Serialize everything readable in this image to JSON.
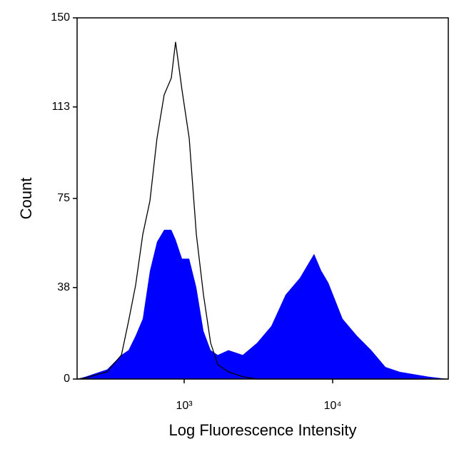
{
  "chart_data": {
    "type": "area",
    "x_label": "Log Fluorescence Intensity",
    "y_label": "Count",
    "x": [
      190,
      217,
      303,
      378,
      422,
      471,
      526,
      588,
      656,
      733,
      819,
      875,
      967,
      1081,
      1208,
      1349,
      1507,
      1683,
      1987,
      2479,
      3093,
      3861,
      4818,
      6012,
      7502,
      8380,
      9360,
      11670,
      14560,
      18190,
      22700,
      28320,
      44060,
      60100
    ],
    "series": [
      {
        "color": "#0000ff",
        "filled": true,
        "values": [
          0,
          1,
          4,
          10,
          12,
          18,
          25,
          45,
          57,
          62,
          62,
          58,
          50,
          50,
          38,
          20,
          12,
          10,
          12,
          10,
          15,
          22,
          35,
          42,
          52,
          45,
          40,
          25,
          18,
          12,
          5,
          3,
          1,
          0
        ]
      },
      {
        "color": "#000000",
        "filled": false,
        "values": [
          0,
          0.5,
          3,
          10,
          24,
          39,
          60,
          74,
          100,
          118,
          125,
          140,
          120,
          100,
          60,
          35,
          15,
          6,
          3,
          1,
          0,
          0,
          0,
          0,
          0,
          0,
          0,
          0,
          0,
          0,
          0,
          0,
          0,
          0
        ]
      }
    ],
    "xscale": "log",
    "xlim": [
      190,
      60100
    ],
    "xticks": [
      {
        "value": 1000,
        "label": "10³"
      },
      {
        "value": 10000,
        "label": "10⁴"
      }
    ],
    "ylim": [
      0,
      150
    ],
    "yticks": [
      0,
      38,
      75,
      113,
      150
    ]
  }
}
